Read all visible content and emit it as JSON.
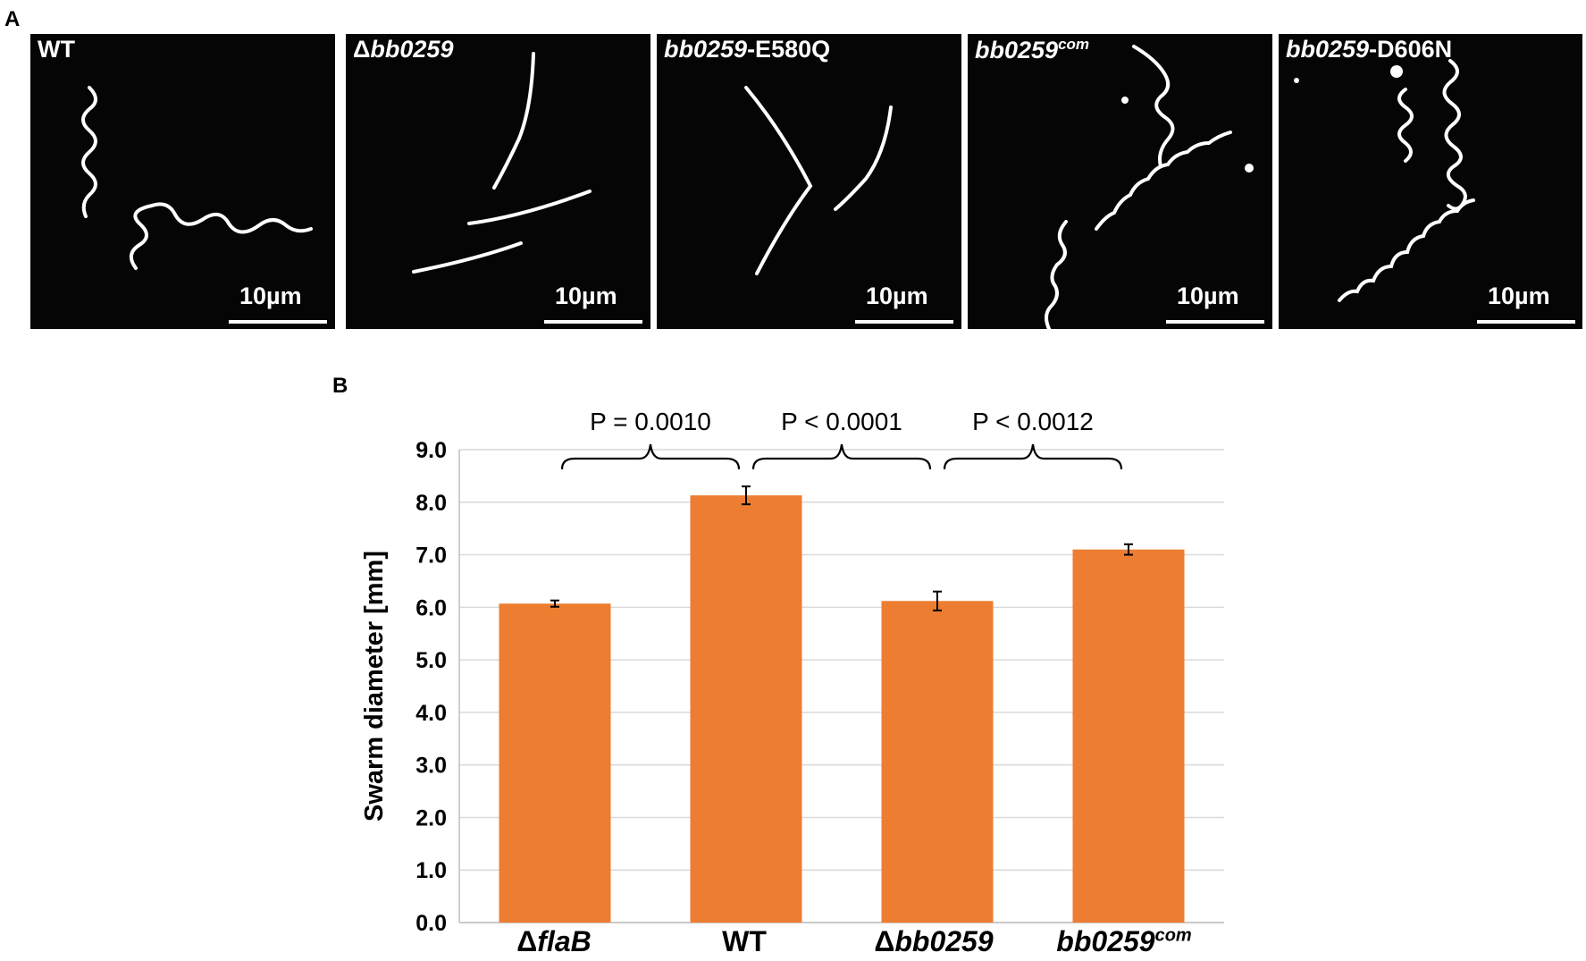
{
  "panel_a": {
    "label": "A",
    "images": [
      {
        "title": "WT",
        "scale": "10µm"
      },
      {
        "title_prefix": "Δ",
        "title_italic": "bb0259",
        "scale": "10µm"
      },
      {
        "title_italic": "bb0259",
        "title_suffix": "-E580Q",
        "scale": "10µm"
      },
      {
        "title_italic": "bb0259",
        "title_sup": "com",
        "scale": "10µm"
      },
      {
        "title_italic": "bb0259",
        "title_suffix": "-D606N",
        "scale": "10µm"
      }
    ]
  },
  "panel_b": {
    "label": "B"
  },
  "chart_data": {
    "type": "bar",
    "categories": [
      "ΔflaB",
      "WT",
      "Δbb0259",
      "bb0259com"
    ],
    "category_display": [
      {
        "prefix": "Δ",
        "italic": "flaB"
      },
      {
        "plain": "WT"
      },
      {
        "prefix": "Δ",
        "italic": "bb0259"
      },
      {
        "italic": "bb0259",
        "sup": "com"
      }
    ],
    "values": [
      6.07,
      8.13,
      6.12,
      7.1
    ],
    "errors": [
      0.06,
      0.17,
      0.18,
      0.1
    ],
    "ylabel": "Swarm diameter [mm]",
    "xlabel": "",
    "ylim": [
      0,
      9
    ],
    "yticks": [
      "0.0",
      "1.0",
      "2.0",
      "3.0",
      "4.0",
      "5.0",
      "6.0",
      "7.0",
      "8.0",
      "9.0"
    ],
    "grid": true,
    "bar_color": "#ed7d31",
    "annotations": [
      {
        "text": "P = 0.0010",
        "from": 0,
        "to": 1
      },
      {
        "text": "P < 0.0001",
        "from": 1,
        "to": 2
      },
      {
        "text": "P < 0.0012",
        "from": 2,
        "to": 3
      }
    ]
  }
}
